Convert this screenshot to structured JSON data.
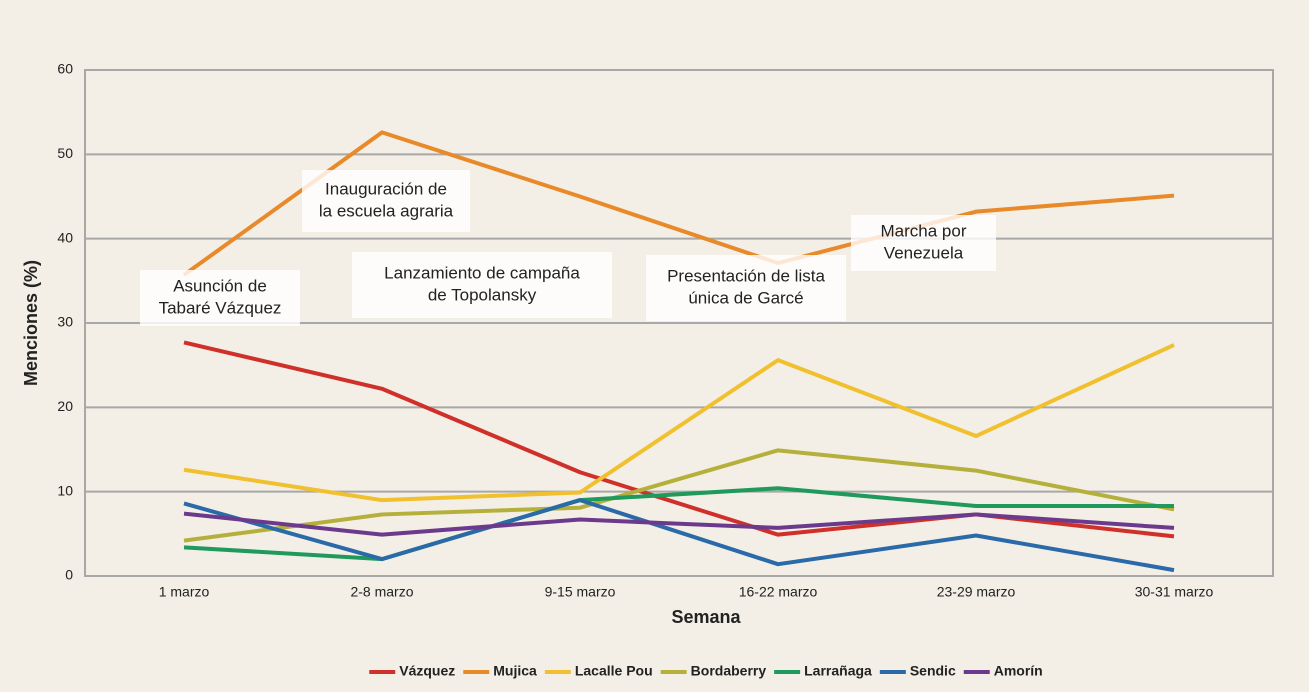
{
  "chart_data": {
    "type": "line",
    "xlabel": "Semana",
    "ylabel": "Menciones (%)",
    "categories": [
      "1 marzo",
      "2-8 marzo",
      "9-15 marzo",
      "16-22 marzo",
      "23-29 marzo",
      "30-31 marzo"
    ],
    "series": [
      {
        "name": "Vázquez",
        "color": "#d0302a",
        "values": [
          27.7,
          22.2,
          12.3,
          4.9,
          7.3,
          4.7
        ]
      },
      {
        "name": "Mujica",
        "color": "#e8892a",
        "values": [
          35.7,
          52.6,
          45.0,
          37.1,
          43.2,
          45.1
        ]
      },
      {
        "name": "Lacalle Pou",
        "color": "#f0c02e",
        "values": [
          12.6,
          9.0,
          9.9,
          25.6,
          16.6,
          27.4
        ]
      },
      {
        "name": "Bordaberry",
        "color": "#b5b03c",
        "values": [
          4.2,
          7.3,
          8.1,
          14.9,
          12.5,
          7.9
        ]
      },
      {
        "name": "Larrañaga",
        "color": "#1f9a5c",
        "values": [
          3.4,
          2.0,
          9.0,
          10.4,
          8.3,
          8.3
        ]
      },
      {
        "name": "Sendic",
        "color": "#2a6aa8",
        "values": [
          8.6,
          2.0,
          9.0,
          1.4,
          4.8,
          0.7
        ]
      },
      {
        "name": "Amorín",
        "color": "#6c3a8c",
        "values": [
          7.4,
          4.9,
          6.7,
          5.7,
          7.3,
          5.7
        ]
      }
    ],
    "ylim": [
      0,
      60
    ],
    "yticks": [
      0,
      10,
      20,
      30,
      40,
      50,
      60
    ],
    "grid": true,
    "legend": "bottom",
    "annotations": [
      {
        "lines": [
          "Asunción de",
          "Tabaré Vázquez"
        ]
      },
      {
        "lines": [
          "Inauguración de",
          "la escuela agraria"
        ]
      },
      {
        "lines": [
          "Lanzamiento de campaña",
          "de Topolansky"
        ]
      },
      {
        "lines": [
          "Presentación de lista",
          "única de Garcé"
        ]
      },
      {
        "lines": [
          "Marcha por",
          "Venezuela"
        ]
      }
    ]
  }
}
